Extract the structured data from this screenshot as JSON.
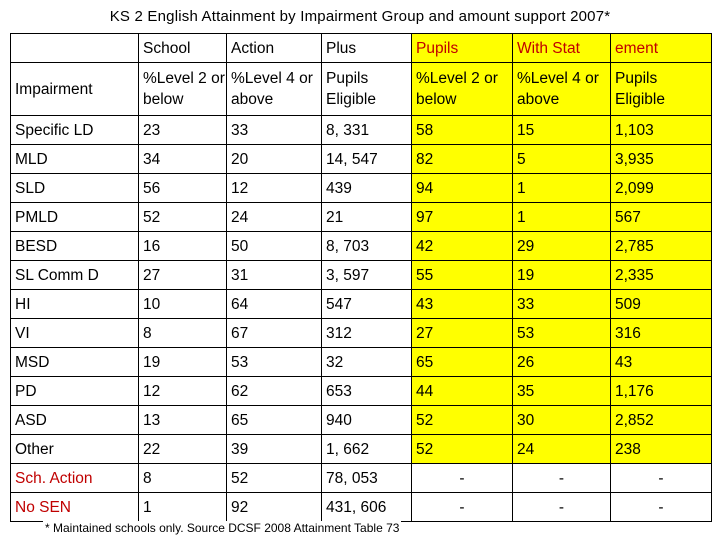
{
  "title": "KS 2 English Attainment by Impairment Group and amount support 2007*",
  "header_row1": [
    "",
    "School",
    "Action",
    "Plus",
    "Pupils",
    "With Stat",
    "ement"
  ],
  "header_row2": [
    "Impairment",
    "%Level 2 or below",
    "%Level 4 or above",
    "Pupils Eligible",
    "%Level 2 or below",
    "%Level 4 or above",
    "Pupils Eligible"
  ],
  "rows": [
    [
      "Specific LD",
      "23",
      "33",
      "8, 331",
      "58",
      "15",
      "1,103"
    ],
    [
      "MLD",
      "34",
      "20",
      "14, 547",
      "82",
      "5",
      "3,935"
    ],
    [
      "SLD",
      "56",
      "12",
      "439",
      "94",
      "1",
      "2,099"
    ],
    [
      "PMLD",
      "52",
      "24",
      "21",
      "97",
      "1",
      "567"
    ],
    [
      "BESD",
      "16",
      "50",
      "8, 703",
      "42",
      "29",
      "2,785"
    ],
    [
      "SL Comm D",
      "27",
      "31",
      "3, 597",
      "55",
      "19",
      "2,335"
    ],
    [
      "HI",
      "10",
      "64",
      "547",
      "43",
      "33",
      "509"
    ],
    [
      "VI",
      "8",
      "67",
      "312",
      "27",
      "53",
      "316"
    ],
    [
      "MSD",
      "19",
      "53",
      "32",
      "65",
      "26",
      "43"
    ],
    [
      "PD",
      "12",
      "62",
      "653",
      "44",
      "35",
      "1,176"
    ],
    [
      "ASD",
      "13",
      "65",
      "940",
      "52",
      "30",
      "2,852"
    ],
    [
      "Other",
      "22",
      "39",
      "1, 662",
      "52",
      "24",
      "238"
    ],
    [
      "Sch. Action",
      "8",
      "52",
      "78, 053",
      "-",
      "-",
      "-"
    ],
    [
      "No SEN",
      "1",
      "92",
      "431, 606",
      "-",
      "-",
      "-"
    ]
  ],
  "footnote": "* Maintained schools only. Source DCSF 2008 Attainment Table 73",
  "colors": {
    "highlight": "#ffff00",
    "red_text": "#c00000"
  }
}
